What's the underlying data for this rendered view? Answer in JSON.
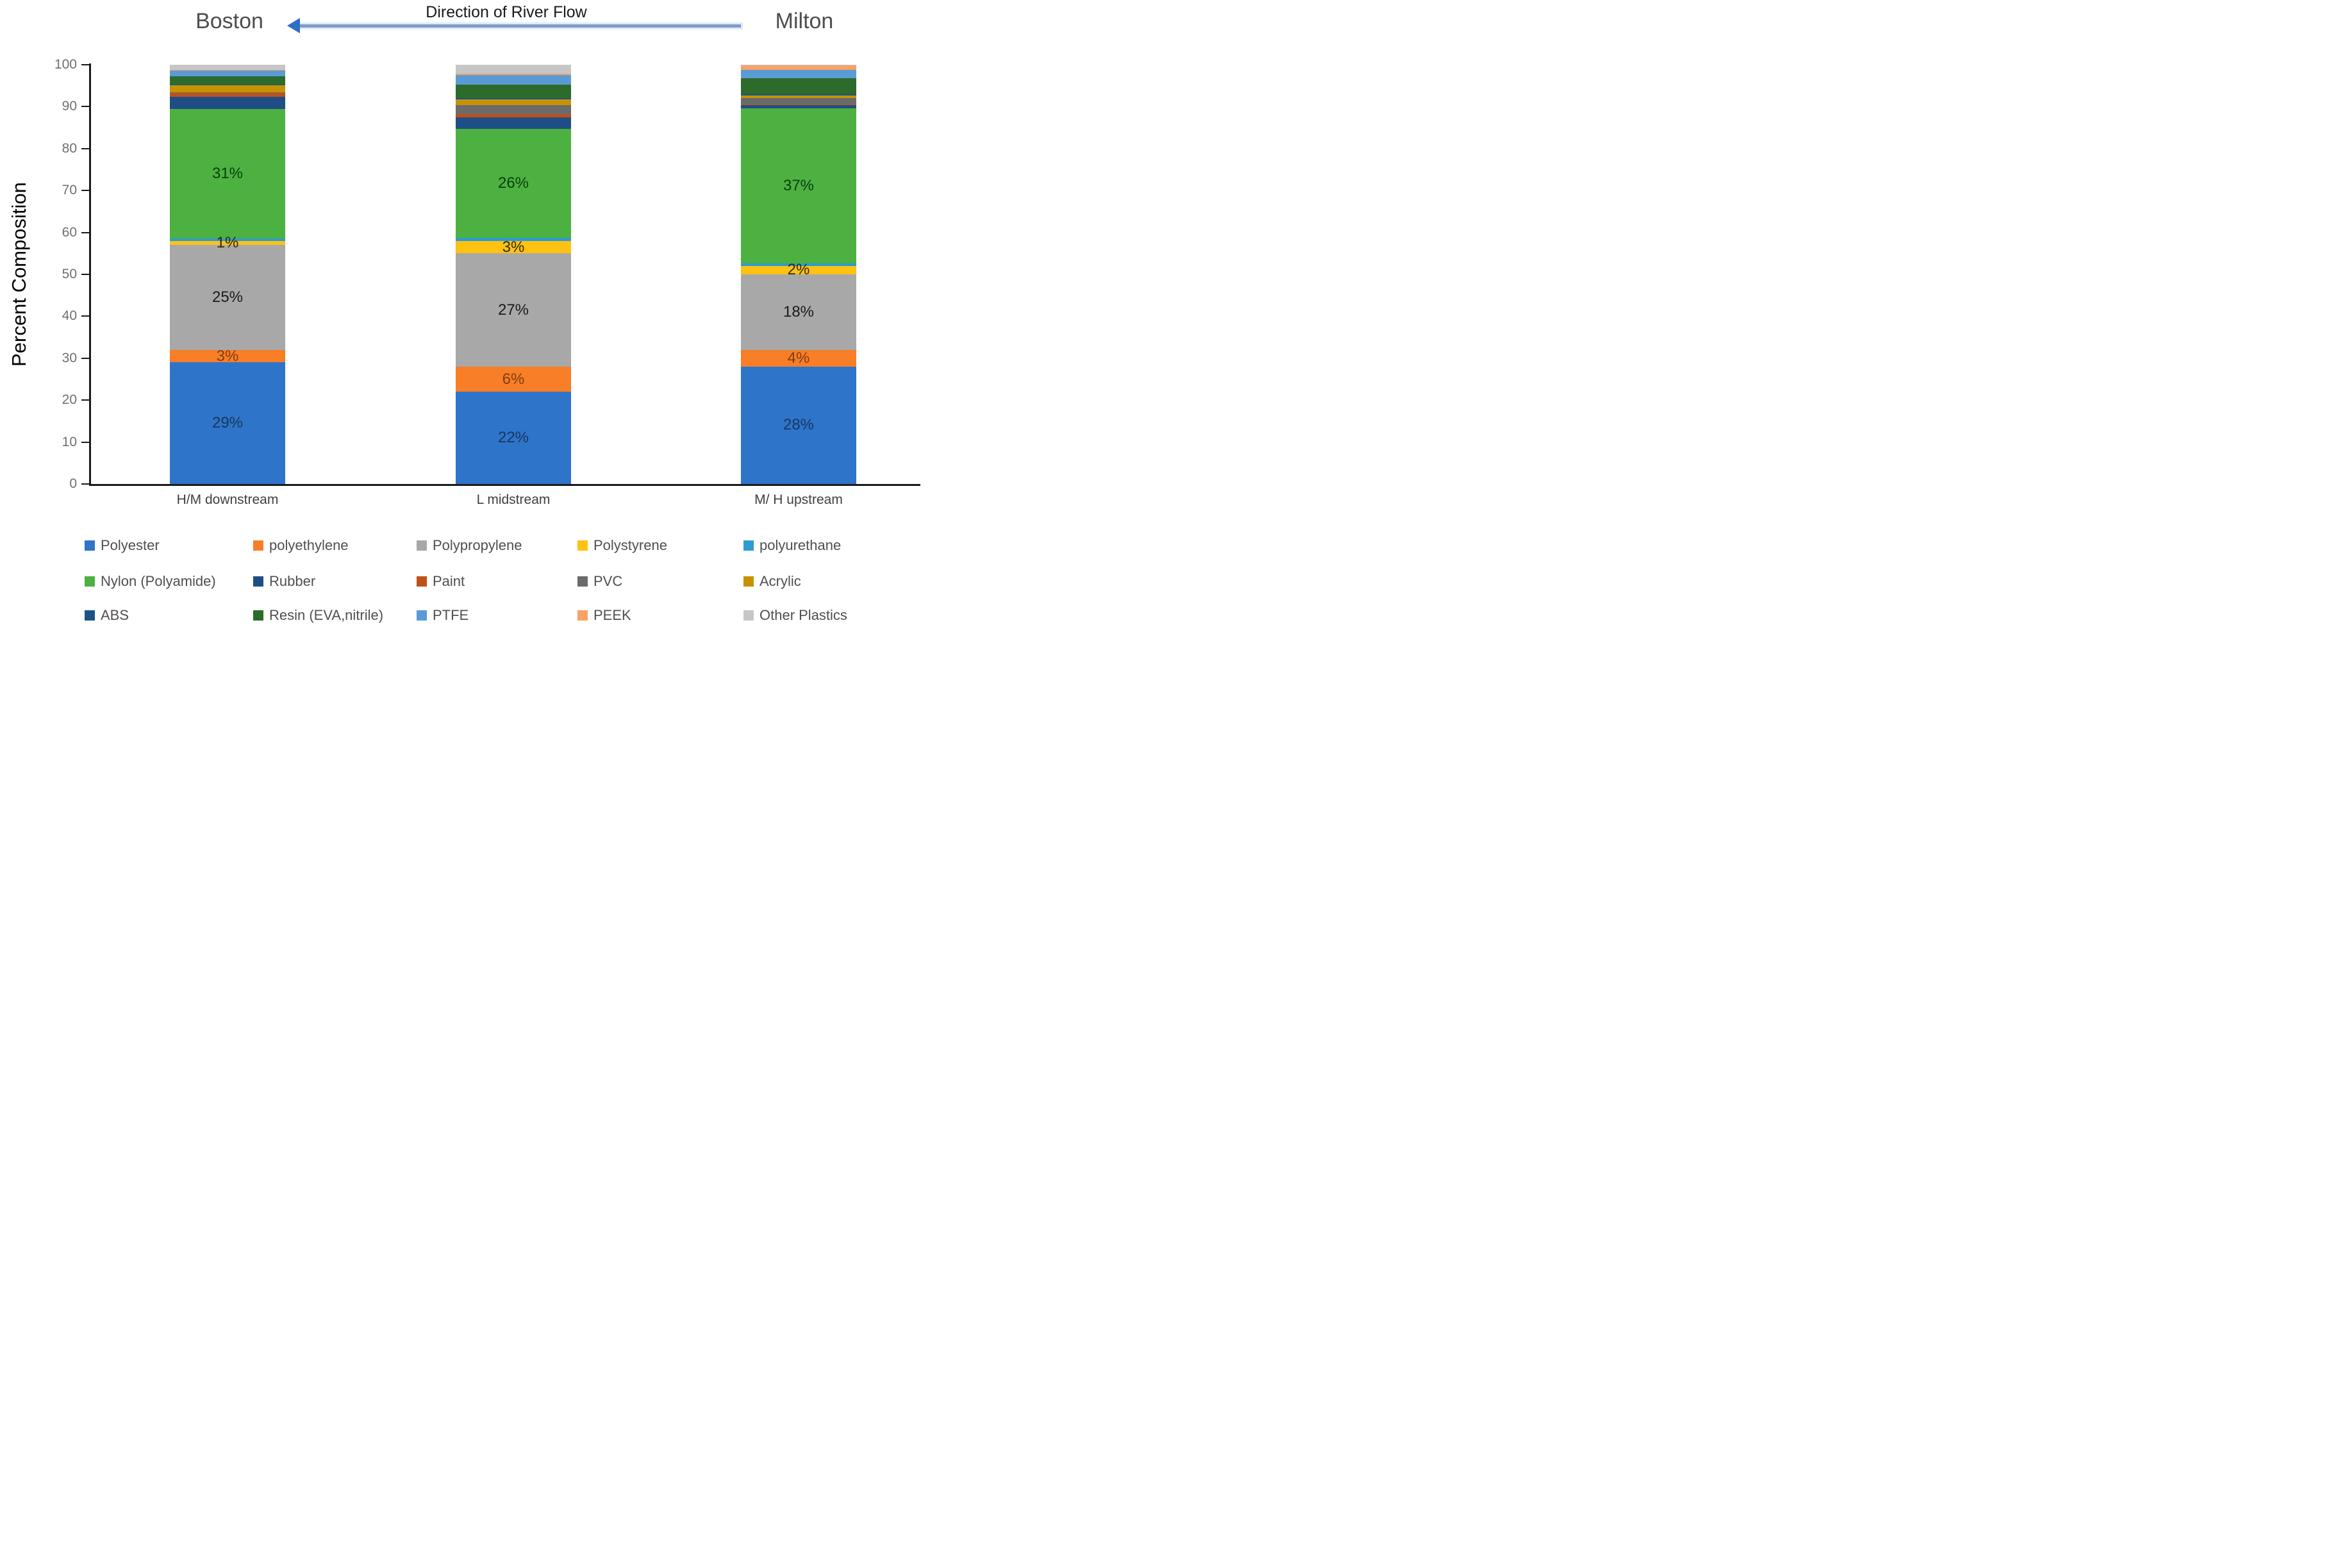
{
  "header": {
    "left_location": "Boston",
    "right_location": "Milton",
    "arrow_label": "Direction of River Flow",
    "arrow_color": "#2e6fc4"
  },
  "y_axis": {
    "title": "Percent Composition",
    "ticks": [
      0,
      10,
      20,
      30,
      40,
      50,
      60,
      70,
      80,
      90,
      100
    ]
  },
  "chart_data": {
    "type": "bar",
    "stacked": true,
    "title": "",
    "xlabel": "",
    "ylabel": "Percent Composition",
    "ylim": [
      0,
      100
    ],
    "grid": false,
    "legend_position": "bottom",
    "categories": [
      "H/M downstream",
      "L midstream",
      "M/ H upstream"
    ],
    "series": [
      {
        "name": "Polyester",
        "color": "#2e74c9",
        "label_color": "#17375e",
        "values": [
          29,
          22,
          28
        ],
        "labels": [
          "29%",
          "22%",
          "28%"
        ]
      },
      {
        "name": "polyethylene",
        "color": "#f87e28",
        "label_color": "#7f3e0e",
        "values": [
          3,
          6,
          4
        ],
        "labels": [
          "3%",
          "6%",
          "4%"
        ]
      },
      {
        "name": "Polypropylene",
        "color": "#a8a8a8",
        "label_color": "#1a1a1a",
        "values": [
          25,
          27,
          18
        ],
        "labels": [
          "25%",
          "27%",
          "18%"
        ]
      },
      {
        "name": "Polystyrene",
        "color": "#ffc213",
        "label_color": "#302a00",
        "values": [
          1,
          3,
          2
        ],
        "labels": [
          "1%",
          "3%",
          "2%"
        ]
      },
      {
        "name": "polyurethane",
        "color": "#2e9bd2",
        "values": [
          0.5,
          0.7,
          0.6
        ]
      },
      {
        "name": "Nylon (Polyamide)",
        "color": "#4cb140",
        "label_color": "#0c3d0c",
        "values": [
          31,
          26,
          37
        ],
        "labels": [
          "31%",
          "26%",
          "37%"
        ]
      },
      {
        "name": "Rubber",
        "color": "#1f4e86",
        "values": [
          2.8,
          2.7,
          0.7
        ]
      },
      {
        "name": "Paint",
        "color": "#c0501a",
        "values": [
          0.9,
          0.8,
          0.2
        ]
      },
      {
        "name": "PVC",
        "color": "#6b6b6b",
        "values": [
          0.3,
          2.2,
          1.5
        ]
      },
      {
        "name": "Acrylic",
        "color": "#c79200",
        "values": [
          1.6,
          1.4,
          0.6
        ]
      },
      {
        "name": "ABS",
        "color": "#1a5586",
        "values": [
          0.2,
          0.3,
          0.4
        ]
      },
      {
        "name": "Resin (EVA,nitrile)",
        "color": "#2d6b2d",
        "values": [
          2.0,
          3.2,
          3.8
        ]
      },
      {
        "name": "PTFE",
        "color": "#5b9bd5",
        "values": [
          1.4,
          2.3,
          2.0
        ]
      },
      {
        "name": "PEEK",
        "color": "#f8a266",
        "values": [
          0.1,
          0.2,
          1.0
        ]
      },
      {
        "name": "Other Plastics",
        "color": "#c6c6c6",
        "values": [
          1.2,
          2.2,
          0.2
        ]
      }
    ]
  }
}
